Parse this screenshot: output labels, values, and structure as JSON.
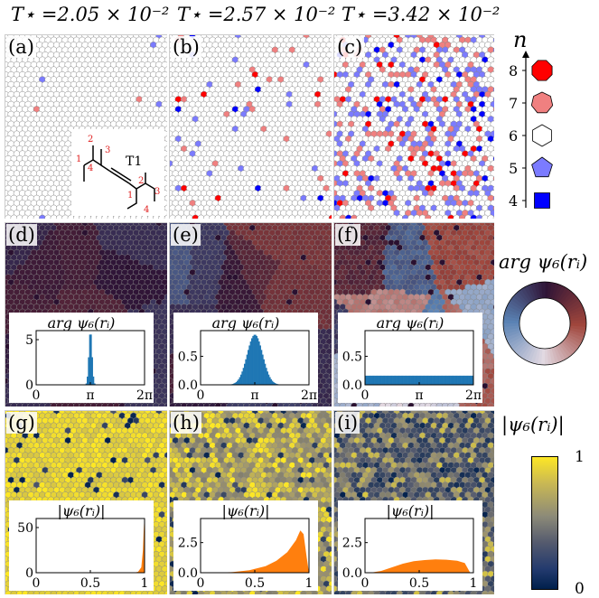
{
  "columns": [
    {
      "T_label": "T⋆ =2.05 × 10⁻²"
    },
    {
      "T_label": "T⋆ =2.57 × 10⁻²"
    },
    {
      "T_label": "T⋆ =3.42 × 10⁻²"
    }
  ],
  "panels": [
    "(a)",
    "(b)",
    "(c)",
    "(d)",
    "(e)",
    "(f)",
    "(g)",
    "(h)",
    "(i)"
  ],
  "molecule_inset": {
    "label": "T1",
    "numbers": [
      "1",
      "2",
      "3",
      "4",
      "1",
      "2",
      "3",
      "4"
    ]
  },
  "n_legend": {
    "axis_label": "n",
    "ticks": [
      "8",
      "7",
      "6",
      "5",
      "4"
    ],
    "colors": [
      "#ff0000",
      "#f08080",
      "#ffffff",
      "#7b7bff",
      "#0000ff"
    ],
    "shapes": [
      "octagon",
      "heptagon",
      "hexagon",
      "pentagon",
      "square"
    ]
  },
  "arg_colorwheel": {
    "title": "arg ψ₆(rᵢ)"
  },
  "abs_colorbar": {
    "title": "|ψ₆(rᵢ)|",
    "max_label": "1",
    "min_label": "0",
    "colors": [
      "#fde725",
      "#7c7b78",
      "#00204c"
    ]
  },
  "arg_insets": [
    {
      "title": "arg ψ₆(rᵢ)",
      "yticks": [
        "5",
        "0"
      ],
      "xticks": [
        "0",
        "π",
        "2π"
      ]
    },
    {
      "title": "arg ψ₆(rᵢ)",
      "yticks": [
        "0.5",
        "0.0"
      ],
      "xticks": [
        "0",
        "π",
        "2π"
      ]
    },
    {
      "title": "arg ψ₆(rᵢ)",
      "yticks": [
        "0.5",
        "0.0"
      ],
      "xticks": [
        "0",
        "π",
        "2π"
      ]
    }
  ],
  "abs_insets": [
    {
      "title": "|ψ₆(rᵢ)|",
      "yticks": [
        "50",
        "0"
      ],
      "xticks": [
        "0",
        "0.5",
        "1"
      ]
    },
    {
      "title": "|ψ₆(rᵢ)|",
      "yticks": [
        "2.5",
        "0.0"
      ],
      "xticks": [
        "0",
        "0.5",
        "1"
      ]
    },
    {
      "title": "|ψ₆(rᵢ)|",
      "yticks": [
        "2.5",
        "0.0"
      ],
      "xticks": [
        "0",
        "0.5",
        "1"
      ]
    }
  ],
  "chart_data": [
    {
      "type": "bar",
      "title": "arg ψ₆(rᵢ)",
      "xlim": [
        0,
        6.283
      ],
      "ylim": [
        0,
        6
      ],
      "shape": "narrow peak",
      "center": 3.1416,
      "width": 0.09,
      "peak": 6.0
    },
    {
      "type": "bar",
      "title": "arg ψ₆(rᵢ)",
      "xlim": [
        0,
        6.283
      ],
      "ylim": [
        0,
        0.95
      ],
      "shape": "peak",
      "center": 3.1416,
      "width": 0.45,
      "peak": 0.88
    },
    {
      "type": "bar",
      "title": "arg ψ₆(rᵢ)",
      "xlim": [
        0,
        6.283
      ],
      "ylim": [
        0,
        0.95
      ],
      "shape": "flat",
      "level": 0.16
    },
    {
      "type": "area",
      "title": "|ψ₆(rᵢ)|",
      "xlim": [
        0,
        1
      ],
      "ylim": [
        0,
        60
      ],
      "shape": "sharp peak near 1",
      "x": [
        0,
        0.9,
        0.94,
        0.97,
        0.985,
        0.995,
        1.0
      ],
      "y": [
        0,
        0,
        1,
        6,
        25,
        55,
        0
      ]
    },
    {
      "type": "area",
      "title": "|ψ₆(rᵢ)|",
      "xlim": [
        0,
        1
      ],
      "ylim": [
        0,
        4.5
      ],
      "x": [
        0.15,
        0.3,
        0.45,
        0.6,
        0.7,
        0.8,
        0.88,
        0.92,
        0.95,
        0.98,
        1.0
      ],
      "y": [
        0,
        0.05,
        0.2,
        0.55,
        1.0,
        1.7,
        2.7,
        3.5,
        3.2,
        1.2,
        0
      ]
    },
    {
      "type": "area",
      "title": "|ψ₆(rᵢ)|",
      "xlim": [
        0,
        1
      ],
      "ylim": [
        0,
        4.5
      ],
      "x": [
        0.05,
        0.15,
        0.25,
        0.35,
        0.45,
        0.55,
        0.65,
        0.75,
        0.85,
        0.92,
        0.97
      ],
      "y": [
        0,
        0.15,
        0.45,
        0.75,
        0.95,
        1.05,
        1.1,
        1.08,
        1.0,
        0.8,
        0
      ]
    }
  ]
}
